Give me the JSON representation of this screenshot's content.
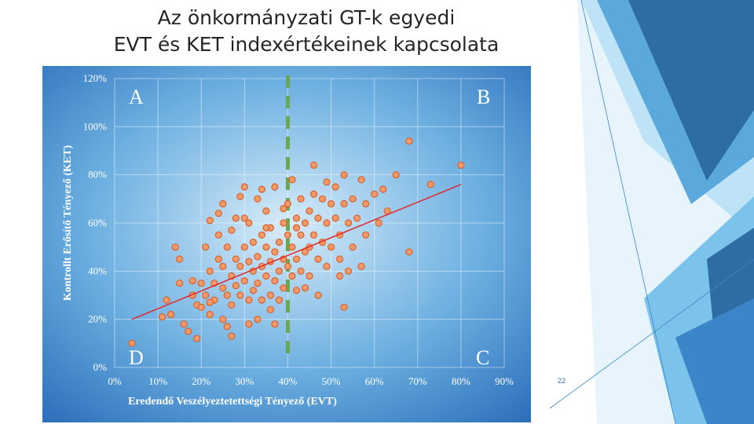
{
  "slide": {
    "title_line1": "Az önkormányzati GT-k egyedi",
    "title_line2": "EVT és KET indexértékeinek kapcsolata",
    "page_number": "22",
    "colors": {
      "accent_dark": "#2e6da4",
      "accent_mid": "#3a86c8",
      "accent_light": "#9dd3f2",
      "accent_pale": "#cfe9f8"
    }
  },
  "chart_data": {
    "type": "scatter",
    "title": "",
    "xlabel": "Eredendő Veszélyeztetettségi Tényező (EVT)",
    "ylabel": "Kontrollt Erősítő Tényező (KET)",
    "xlim": [
      0,
      0.9
    ],
    "ylim": [
      0,
      1.2
    ],
    "x_ticks": [
      "0%",
      "10%",
      "20%",
      "30%",
      "40%",
      "50%",
      "60%",
      "70%",
      "80%",
      "90%"
    ],
    "y_ticks": [
      "0%",
      "20%",
      "40%",
      "60%",
      "80%",
      "100%",
      "120%"
    ],
    "grid": true,
    "quadrant_labels": {
      "A": "A",
      "B": "B",
      "C": "C",
      "D": "D"
    },
    "divider_x": 0.4,
    "trendline": {
      "x": [
        0.04,
        0.8
      ],
      "y": [
        0.2,
        0.76
      ]
    },
    "marker_color": "#f39a6b",
    "marker_edge": "#d9612b",
    "trend_color": "#e0282e",
    "divider_color": "#6aa84f",
    "series": [
      {
        "x": [
          0.04,
          0.11,
          0.12,
          0.13,
          0.14,
          0.15,
          0.15,
          0.16,
          0.17,
          0.18,
          0.19,
          0.19,
          0.2,
          0.2,
          0.21,
          0.21,
          0.22,
          0.22,
          0.22,
          0.23,
          0.23,
          0.24,
          0.24,
          0.25,
          0.25,
          0.25,
          0.26,
          0.26,
          0.27,
          0.27,
          0.27,
          0.28,
          0.28,
          0.28,
          0.29,
          0.29,
          0.3,
          0.3,
          0.3,
          0.31,
          0.31,
          0.31,
          0.32,
          0.32,
          0.32,
          0.33,
          0.33,
          0.33,
          0.34,
          0.34,
          0.34,
          0.35,
          0.35,
          0.35,
          0.36,
          0.36,
          0.36,
          0.37,
          0.37,
          0.37,
          0.38,
          0.38,
          0.38,
          0.39,
          0.39,
          0.39,
          0.4,
          0.4,
          0.4,
          0.41,
          0.41,
          0.41,
          0.42,
          0.42,
          0.42,
          0.43,
          0.43,
          0.43,
          0.44,
          0.44,
          0.45,
          0.45,
          0.45,
          0.46,
          0.46,
          0.47,
          0.47,
          0.48,
          0.48,
          0.49,
          0.49,
          0.5,
          0.5,
          0.51,
          0.51,
          0.52,
          0.52,
          0.53,
          0.53,
          0.54,
          0.55,
          0.55,
          0.56,
          0.57,
          0.58,
          0.58,
          0.6,
          0.61,
          0.62,
          0.63,
          0.65,
          0.68,
          0.73,
          0.8,
          0.68,
          0.53,
          0.25,
          0.3,
          0.35,
          0.18,
          0.22,
          0.26,
          0.33,
          0.36,
          0.44,
          0.47,
          0.52,
          0.57,
          0.42,
          0.39,
          0.34,
          0.29,
          0.24,
          0.46,
          0.49,
          0.54,
          0.31,
          0.27,
          0.37
        ],
        "y": [
          0.1,
          0.21,
          0.28,
          0.22,
          0.5,
          0.45,
          0.35,
          0.18,
          0.15,
          0.3,
          0.26,
          0.12,
          0.35,
          0.25,
          0.5,
          0.3,
          0.4,
          0.22,
          0.61,
          0.35,
          0.28,
          0.55,
          0.45,
          0.33,
          0.42,
          0.2,
          0.5,
          0.3,
          0.57,
          0.38,
          0.26,
          0.45,
          0.34,
          0.62,
          0.42,
          0.3,
          0.5,
          0.36,
          0.75,
          0.44,
          0.28,
          0.6,
          0.4,
          0.52,
          0.32,
          0.46,
          0.35,
          0.7,
          0.42,
          0.55,
          0.28,
          0.5,
          0.38,
          0.65,
          0.44,
          0.3,
          0.58,
          0.48,
          0.36,
          0.75,
          0.52,
          0.4,
          0.28,
          0.6,
          0.45,
          0.33,
          0.55,
          0.42,
          0.68,
          0.5,
          0.38,
          0.78,
          0.62,
          0.45,
          0.32,
          0.55,
          0.7,
          0.4,
          0.6,
          0.48,
          0.65,
          0.5,
          0.38,
          0.72,
          0.55,
          0.62,
          0.45,
          0.7,
          0.52,
          0.6,
          0.42,
          0.68,
          0.5,
          0.62,
          0.75,
          0.55,
          0.45,
          0.68,
          0.8,
          0.6,
          0.7,
          0.5,
          0.62,
          0.78,
          0.55,
          0.68,
          0.72,
          0.6,
          0.74,
          0.65,
          0.8,
          0.94,
          0.76,
          0.84,
          0.48,
          0.25,
          0.68,
          0.62,
          0.58,
          0.36,
          0.27,
          0.17,
          0.2,
          0.24,
          0.33,
          0.3,
          0.38,
          0.42,
          0.58,
          0.66,
          0.74,
          0.71,
          0.64,
          0.84,
          0.77,
          0.4,
          0.18,
          0.13,
          0.18
        ]
      }
    ]
  }
}
